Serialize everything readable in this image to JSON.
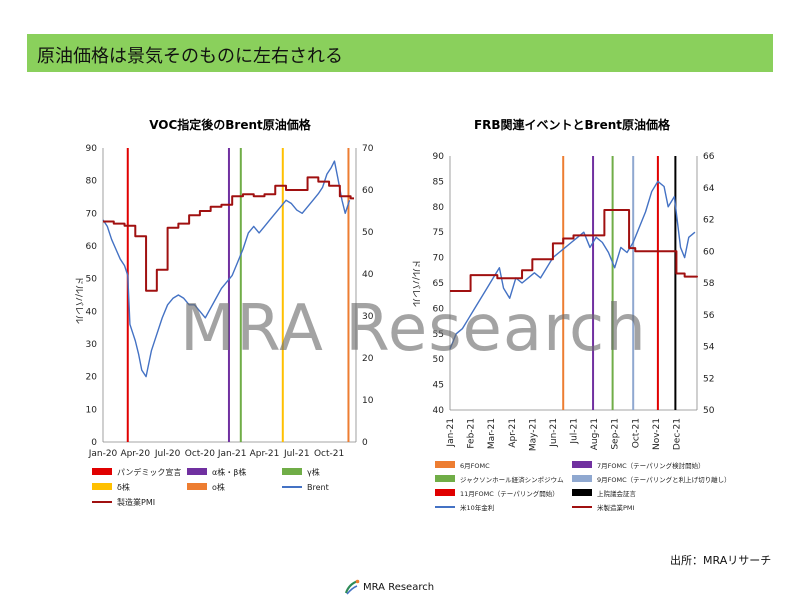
{
  "header": {
    "title": "原油価格は景気そのものに左右される"
  },
  "watermark": "MRA Research",
  "source_label": "出所：MRAリサーチ",
  "footer": {
    "brand": "MRA Research"
  },
  "colors": {
    "banner": "#8ad05c",
    "brent": "#4472c4",
    "pmi": "#a01010"
  },
  "chart_data": [
    {
      "type": "line",
      "title": "VOC指定後のBrent原油価格",
      "ylabel": "ドル/バレル",
      "ylim": [
        0,
        90
      ],
      "y_ticks": [
        "0",
        "10",
        "20",
        "30",
        "40",
        "50",
        "60",
        "70",
        "80",
        "90"
      ],
      "y2lim": [
        0,
        70
      ],
      "y2_ticks": [
        "0",
        "10",
        "20",
        "30",
        "40",
        "50",
        "60",
        "70"
      ],
      "xlim": [
        "2020-01",
        "2021-12"
      ],
      "x_ticks": [
        "Jan-20",
        "Apr-20",
        "Jul-20",
        "Oct-20",
        "Jan-21",
        "Apr-21",
        "Jul-21",
        "Oct-21"
      ],
      "series": [
        {
          "name": "Brent",
          "axis": "left",
          "color": "#4472c4",
          "x": [
            0.0,
            0.4,
            0.8,
            1.2,
            1.6,
            2.0,
            2.3,
            2.5,
            2.8,
            3.0,
            3.3,
            3.6,
            4.0,
            4.5,
            5.0,
            5.5,
            6.0,
            6.5,
            7.0,
            7.5,
            8.0,
            8.5,
            9.0,
            9.5,
            10.0,
            10.5,
            11.0,
            11.5,
            12.0,
            12.5,
            13.0,
            13.5,
            14.0,
            14.5,
            15.0,
            15.5,
            16.0,
            16.5,
            17.0,
            17.5,
            18.0,
            18.5,
            19.0,
            19.5,
            20.0,
            20.4,
            20.8,
            21.2,
            21.5,
            21.8,
            22.2,
            22.5,
            22.9
          ],
          "y": [
            68,
            66,
            62,
            59,
            56,
            54,
            51,
            36,
            33,
            31,
            27,
            22,
            20,
            28,
            33,
            38,
            42,
            44,
            45,
            44,
            42,
            42,
            40,
            38,
            41,
            44,
            47,
            49,
            51,
            55,
            59,
            64,
            66,
            64,
            66,
            68,
            70,
            72,
            74,
            73,
            71,
            70,
            72,
            74,
            76,
            78,
            82,
            84,
            86,
            81,
            74,
            70,
            74
          ]
        },
        {
          "name": "製造業PMI",
          "axis": "right",
          "color": "#a01010",
          "step": true,
          "x": [
            0.0,
            1.0,
            2.0,
            3.0,
            4.0,
            5.0,
            6.0,
            7.0,
            8.0,
            9.0,
            10.0,
            11.0,
            12.0,
            13.0,
            14.0,
            15.0,
            16.0,
            17.0,
            18.0,
            19.0,
            20.0,
            21.0,
            22.0,
            23.0
          ],
          "y": [
            52.5,
            52,
            51.5,
            49,
            36,
            41,
            51,
            52,
            54,
            55,
            56,
            56.5,
            58.5,
            59,
            58.5,
            59,
            61,
            60,
            60,
            63,
            62,
            61,
            58.5,
            58
          ]
        }
      ],
      "events": [
        {
          "name": "パンデミック宣言",
          "x": 2.3,
          "color": "#e00000"
        },
        {
          "name": "α株・β株",
          "x": 11.7,
          "color": "#7030a0"
        },
        {
          "name": "γ株",
          "x": 12.8,
          "color": "#70ad47"
        },
        {
          "name": "δ株",
          "x": 16.7,
          "color": "#ffc000"
        },
        {
          "name": "ο株",
          "x": 22.8,
          "color": "#ed7d31"
        }
      ],
      "legend": [
        "パンデミック宣言",
        "α株・β株",
        "γ株",
        "δ株",
        "ο株",
        "Brent",
        "製造業PMI"
      ]
    },
    {
      "type": "line",
      "title": "FRB関連イベントとBrent原油価格",
      "ylabel": "ドル/バレル",
      "ylim": [
        40,
        90
      ],
      "y_ticks": [
        "40",
        "45",
        "50",
        "55",
        "60",
        "65",
        "70",
        "75",
        "80",
        "85",
        "90"
      ],
      "y2lim": [
        50,
        66
      ],
      "y2_ticks": [
        "50",
        "52",
        "54",
        "56",
        "58",
        "60",
        "62",
        "64",
        "66"
      ],
      "xlim": [
        "2021-01",
        "2021-12"
      ],
      "x_ticks": [
        "Jan-21",
        "Feb-21",
        "Mar-21",
        "Apr-21",
        "May-21",
        "Jun-21",
        "Jul-21",
        "Aug-21",
        "Sep-21",
        "Oct-21",
        "Nov-21",
        "Dec-21"
      ],
      "series": [
        {
          "name": "米10年金利",
          "axis": "left",
          "color": "#4472c4",
          "x": [
            0.0,
            0.3,
            0.6,
            0.9,
            1.2,
            1.5,
            1.8,
            2.1,
            2.4,
            2.6,
            2.9,
            3.2,
            3.5,
            3.8,
            4.1,
            4.4,
            4.7,
            5.0,
            5.3,
            5.6,
            5.9,
            6.2,
            6.5,
            6.8,
            7.1,
            7.4,
            7.7,
            8.0,
            8.3,
            8.6,
            8.9,
            9.2,
            9.5,
            9.8,
            10.1,
            10.4,
            10.6,
            10.9,
            11.2,
            11.4,
            11.6,
            11.9
          ],
          "y": [
            52,
            55,
            56,
            58,
            60,
            62,
            64,
            66,
            68,
            64,
            62,
            66,
            65,
            66,
            67,
            66,
            68,
            70,
            71,
            72,
            73,
            74,
            75,
            72,
            74,
            73,
            71,
            68,
            72,
            71,
            73,
            76,
            79,
            83,
            85,
            84,
            80,
            82,
            72,
            70,
            74,
            75
          ]
        },
        {
          "name": "米製造業PMI",
          "axis": "right",
          "color": "#a01010",
          "step": true,
          "x": [
            0.0,
            0.7,
            1.0,
            2.0,
            2.3,
            3.0,
            3.5,
            4.0,
            5.0,
            5.5,
            6.0,
            7.0,
            7.5,
            8.0,
            8.7,
            9.0,
            10.0,
            11.0,
            11.4,
            12.0
          ],
          "y": [
            57.5,
            57.5,
            58.5,
            58.5,
            58.3,
            58.3,
            58.8,
            59.5,
            60.5,
            60.8,
            61,
            61,
            62.6,
            62.6,
            60.2,
            60,
            60,
            58.6,
            58.4,
            58.4
          ]
        }
      ],
      "events": [
        {
          "name": "6月FOMC",
          "x": 5.5,
          "color": "#ed7d31"
        },
        {
          "name": "7月FOMC（テーパリング検討開始）",
          "x": 6.95,
          "color": "#7030a0"
        },
        {
          "name": "ジャクソンホール経済シンポジウム",
          "x": 7.9,
          "color": "#70ad47"
        },
        {
          "name": "9月FOMC（テーパリングと利上げ切り離し）",
          "x": 8.9,
          "color": "#8fa8d0"
        },
        {
          "name": "11月FOMC（テーパリング開始）",
          "x": 10.1,
          "color": "#e00000"
        },
        {
          "name": "上院議会証言",
          "x": 10.95,
          "color": "#000000"
        }
      ],
      "legend": [
        "6月FOMC",
        "7月FOMC（テーパリング検討開始）",
        "ジャクソンホール経済シンポジウム",
        "9月FOMC（テーパリングと利上げ切り離し）",
        "11月FOMC（テーパリング開始）",
        "上院議会証言",
        "米10年金利",
        "米製造業PMI"
      ]
    }
  ]
}
